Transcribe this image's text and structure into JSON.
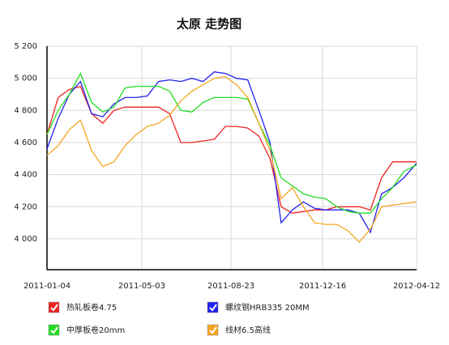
{
  "chart_data": {
    "type": "line",
    "title": "太原 走势图",
    "x": [
      "2011-01-04",
      "2011-01-18",
      "2011-02-01",
      "2011-02-15",
      "2011-03-01",
      "2011-03-15",
      "2011-03-29",
      "2011-04-12",
      "2011-04-26",
      "2011-05-10",
      "2011-05-24",
      "2011-06-07",
      "2011-06-21",
      "2011-07-05",
      "2011-07-19",
      "2011-08-02",
      "2011-08-16",
      "2011-08-30",
      "2011-09-13",
      "2011-09-27",
      "2011-10-11",
      "2011-10-25",
      "2011-11-08",
      "2011-11-22",
      "2011-12-06",
      "2011-12-20",
      "2012-01-03",
      "2012-01-17",
      "2012-01-31",
      "2012-02-14",
      "2012-02-28",
      "2012-03-13",
      "2012-03-27",
      "2012-04-12"
    ],
    "series": [
      {
        "name": "热轧板卷4.75",
        "color": "#ee2222",
        "values": [
          4650,
          4880,
          4930,
          4950,
          4780,
          4720,
          4800,
          4820,
          4820,
          4820,
          4820,
          4780,
          4600,
          4600,
          4610,
          4620,
          4700,
          4700,
          4690,
          4640,
          4500,
          4200,
          4160,
          4170,
          4180,
          4180,
          4200,
          4200,
          4200,
          4180,
          4380,
          4480,
          4480,
          4480
        ]
      },
      {
        "name": "螺纹钢HRB335 20MM",
        "color": "#2222ee",
        "values": [
          4560,
          4750,
          4900,
          4980,
          4780,
          4760,
          4840,
          4880,
          4880,
          4890,
          4980,
          4990,
          4980,
          5000,
          4980,
          5040,
          5030,
          5000,
          4990,
          4800,
          4600,
          4100,
          4180,
          4230,
          4190,
          4180,
          4180,
          4180,
          4160,
          4040,
          4280,
          4320,
          4380,
          4470
        ]
      },
      {
        "name": "中厚板卷20mm",
        "color": "#22dd22",
        "values": [
          4650,
          4800,
          4900,
          5030,
          4850,
          4790,
          4820,
          4940,
          4950,
          4950,
          4950,
          4920,
          4800,
          4790,
          4850,
          4880,
          4880,
          4880,
          4870,
          4720,
          4580,
          4380,
          4330,
          4280,
          4260,
          4250,
          4200,
          4170,
          4160,
          4160,
          4250,
          4320,
          4420,
          4460
        ]
      },
      {
        "name": "线材6.5高线",
        "color": "#f5a623",
        "values": [
          4520,
          4580,
          4680,
          4740,
          4550,
          4450,
          4480,
          4580,
          4650,
          4700,
          4720,
          4770,
          4860,
          4920,
          4960,
          5000,
          5010,
          4960,
          4880,
          4720,
          4550,
          4250,
          4320,
          4200,
          4100,
          4090,
          4090,
          4050,
          3980,
          4060,
          4200,
          4210,
          4220,
          4230
        ]
      }
    ],
    "xlim": [
      "2011-01-04",
      "2012-04-12"
    ],
    "xticks": [
      "2011-01-04",
      "2011-05-03",
      "2011-08-23",
      "2011-12-16",
      "2012-04-12"
    ],
    "ylim": [
      3808,
      5200
    ],
    "yticks": [
      {
        "value": 4000,
        "label": "4 000"
      },
      {
        "value": 4200,
        "label": "4 200"
      },
      {
        "value": 4400,
        "label": "4 400"
      },
      {
        "value": 4600,
        "label": "4 600"
      },
      {
        "value": 4800,
        "label": "4 800"
      },
      {
        "value": 5000,
        "label": "5 000"
      },
      {
        "value": 5200,
        "label": "5 200"
      }
    ],
    "grid": true
  }
}
